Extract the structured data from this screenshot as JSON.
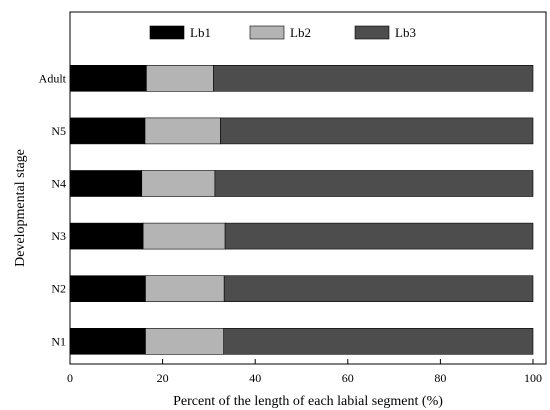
{
  "chart_data": {
    "type": "bar",
    "orientation": "horizontal",
    "stacked": true,
    "xlabel": "Percent of the length of each labial segment (%)",
    "ylabel": "Developmental stage",
    "xlim": [
      0,
      100
    ],
    "xticks": [
      0,
      20,
      40,
      60,
      80,
      100
    ],
    "grid": false,
    "legend_position": "top",
    "categories": [
      "Adult",
      "N5",
      "N4",
      "N3",
      "N2",
      "N1"
    ],
    "series": [
      {
        "name": "Lb1",
        "color": "#000000",
        "values": [
          16.5,
          16.2,
          15.5,
          15.8,
          16.3,
          16.3
        ]
      },
      {
        "name": "Lb2",
        "color": "#b4b4b4",
        "values": [
          14.5,
          16.3,
          15.8,
          17.7,
          17.0,
          16.9
        ]
      },
      {
        "name": "Lb3",
        "color": "#4d4d4d",
        "values": [
          69.0,
          67.5,
          68.7,
          66.5,
          66.7,
          66.8
        ]
      }
    ]
  }
}
